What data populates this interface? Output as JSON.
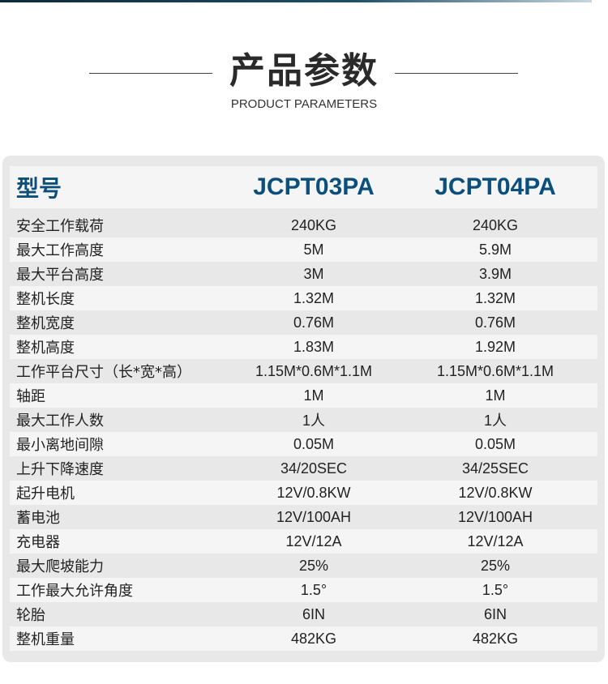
{
  "header": {
    "title": "产品参数",
    "subtitle": "PRODUCT PARAMETERS"
  },
  "colors": {
    "accent": "#0c4f7a",
    "card_bg": "#e8e8e8",
    "row_alt": "#f5f5f5"
  },
  "table": {
    "columns": [
      "型号",
      "JCPT03PA",
      "JCPT04PA"
    ],
    "rows": [
      [
        "安全工作载荷",
        "240KG",
        "240KG"
      ],
      [
        "最大工作高度",
        "5M",
        "5.9M"
      ],
      [
        "最大平台高度",
        "3M",
        "3.9M"
      ],
      [
        "整机长度",
        "1.32M",
        "1.32M"
      ],
      [
        "整机宽度",
        "0.76M",
        "0.76M"
      ],
      [
        "整机高度",
        "1.83M",
        "1.92M"
      ],
      [
        "工作平台尺寸（长*宽*高）",
        "1.15M*0.6M*1.1M",
        "1.15M*0.6M*1.1M"
      ],
      [
        "轴距",
        "1M",
        "1M"
      ],
      [
        "最大工作人数",
        "1人",
        "1人"
      ],
      [
        "最小离地间隙",
        "0.05M",
        "0.05M"
      ],
      [
        "上升下降速度",
        "34/20SEC",
        "34/25SEC"
      ],
      [
        "起升电机",
        "12V/0.8KW",
        "12V/0.8KW"
      ],
      [
        "蓄电池",
        "12V/100AH",
        "12V/100AH"
      ],
      [
        "充电器",
        "12V/12A",
        "12V/12A"
      ],
      [
        "最大爬坡能力",
        "25%",
        "25%"
      ],
      [
        "工作最大允许角度",
        "1.5°",
        "1.5°"
      ],
      [
        "轮胎",
        "6IN",
        "6IN"
      ],
      [
        "整机重量",
        "482KG",
        "482KG"
      ]
    ]
  }
}
